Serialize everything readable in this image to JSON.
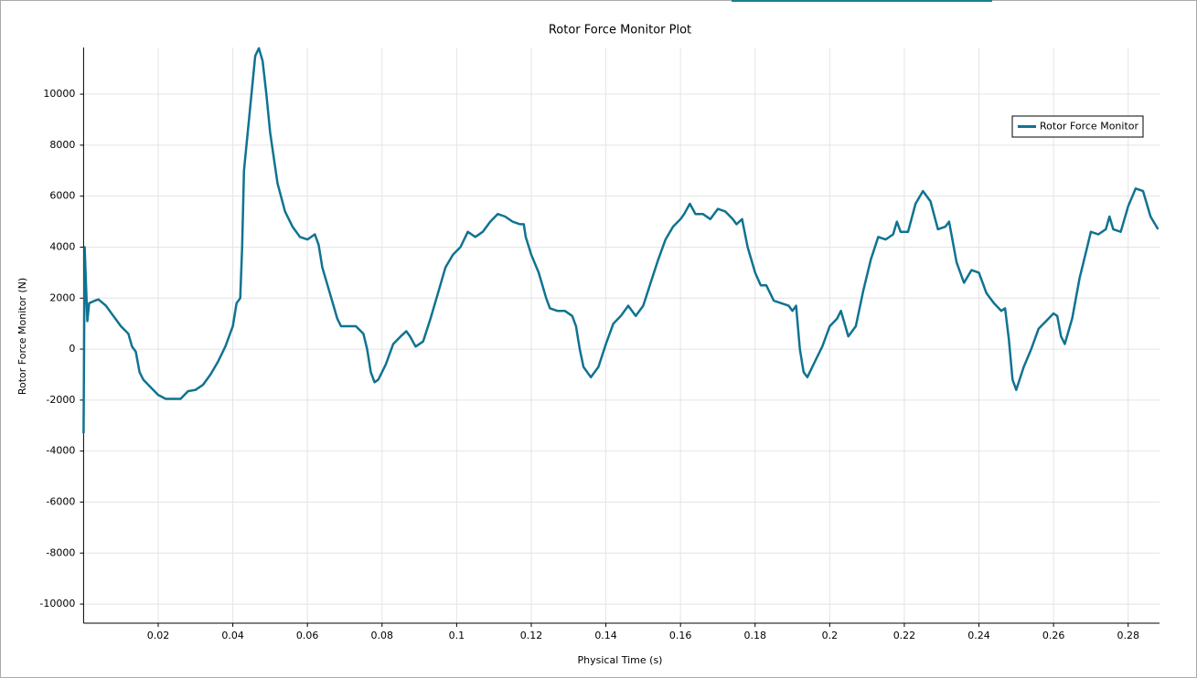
{
  "chart_data": {
    "type": "line",
    "title": "Rotor Force Monitor Plot",
    "x_label": "Physical Time (s)",
    "y_label": "Rotor Force Monitor (N)",
    "xlim": [
      0,
      0.2884
    ],
    "ylim": [
      -10750,
      11830
    ],
    "xticks": [
      0.02,
      0.04,
      0.06,
      0.08,
      0.1,
      0.12,
      0.14,
      0.16,
      0.18,
      0.2,
      0.22,
      0.24,
      0.26,
      0.28
    ],
    "yticks": [
      -10000,
      -8000,
      -6000,
      -4000,
      -2000,
      0,
      2000,
      4000,
      6000,
      8000,
      10000
    ],
    "grid": true,
    "legend": "upper right",
    "x": [
      0,
      0.0003,
      0.001,
      0.0015,
      0.003,
      0.004,
      0.006,
      0.008,
      0.01,
      0.012,
      0.013,
      0.014,
      0.015,
      0.016,
      0.018,
      0.02,
      0.022,
      0.024,
      0.026,
      0.028,
      0.03,
      0.032,
      0.034,
      0.036,
      0.038,
      0.04,
      0.041,
      0.042,
      0.0425,
      0.043,
      0.044,
      0.045,
      0.046,
      0.047,
      0.048,
      0.049,
      0.05,
      0.052,
      0.054,
      0.056,
      0.058,
      0.06,
      0.062,
      0.063,
      0.064,
      0.066,
      0.068,
      0.069,
      0.071,
      0.073,
      0.075,
      0.076,
      0.077,
      0.078,
      0.079,
      0.081,
      0.083,
      0.085,
      0.0865,
      0.0875,
      0.089,
      0.091,
      0.093,
      0.095,
      0.097,
      0.099,
      0.101,
      0.103,
      0.104,
      0.105,
      0.107,
      0.109,
      0.111,
      0.113,
      0.115,
      0.117,
      0.118,
      0.1185,
      0.12,
      0.122,
      0.124,
      0.125,
      0.127,
      0.129,
      0.131,
      0.132,
      0.133,
      0.134,
      0.136,
      0.138,
      0.14,
      0.142,
      0.144,
      0.146,
      0.148,
      0.15,
      0.152,
      0.154,
      0.156,
      0.158,
      0.16,
      0.161,
      0.1625,
      0.164,
      0.166,
      0.168,
      0.17,
      0.172,
      0.174,
      0.175,
      0.1765,
      0.178,
      0.18,
      0.1815,
      0.183,
      0.185,
      0.187,
      0.189,
      0.19,
      0.191,
      0.192,
      0.193,
      0.194,
      0.196,
      0.198,
      0.2,
      0.202,
      0.203,
      0.205,
      0.207,
      0.209,
      0.211,
      0.213,
      0.215,
      0.217,
      0.218,
      0.219,
      0.221,
      0.223,
      0.225,
      0.227,
      0.229,
      0.231,
      0.232,
      0.234,
      0.236,
      0.238,
      0.24,
      0.242,
      0.244,
      0.246,
      0.247,
      0.248,
      0.249,
      0.25,
      0.252,
      0.254,
      0.256,
      0.258,
      0.26,
      0.261,
      0.262,
      0.263,
      0.265,
      0.267,
      0.269,
      0.27,
      0.272,
      0.274,
      0.275,
      0.276,
      0.278,
      0.28,
      0.282,
      0.284,
      0.286,
      0.288
    ],
    "series": [
      {
        "name": "Rotor Force Monitor",
        "color": "#0f7391",
        "values": [
          -3300,
          4000,
          1100,
          1800,
          1900,
          1950,
          1700,
          1300,
          900,
          600,
          100,
          -100,
          -900,
          -1200,
          -1500,
          -1800,
          -1950,
          -1950,
          -1950,
          -1650,
          -1600,
          -1400,
          -1000,
          -500,
          100,
          900,
          1800,
          2000,
          4000,
          7000,
          8500,
          10000,
          11500,
          11800,
          11300,
          10000,
          8500,
          6500,
          5400,
          4800,
          4400,
          4300,
          4500,
          4100,
          3200,
          2200,
          1200,
          900,
          900,
          900,
          600,
          0,
          -900,
          -1300,
          -1200,
          -600,
          200,
          500,
          700,
          500,
          100,
          300,
          1200,
          2200,
          3200,
          3700,
          4000,
          4600,
          4500,
          4400,
          4600,
          5000,
          5300,
          5200,
          5000,
          4900,
          4900,
          4400,
          3700,
          3000,
          2000,
          1600,
          1500,
          1500,
          1300,
          900,
          0,
          -700,
          -1100,
          -700,
          200,
          1000,
          1300,
          1700,
          1300,
          1700,
          2600,
          3500,
          4300,
          4800,
          5100,
          5300,
          5700,
          5300,
          5300,
          5100,
          5500,
          5400,
          5100,
          4900,
          5100,
          4000,
          3000,
          2500,
          2500,
          1900,
          1800,
          1700,
          1500,
          1700,
          0,
          -900,
          -1100,
          -500,
          100,
          900,
          1200,
          1500,
          500,
          900,
          2300,
          3500,
          4400,
          4300,
          4500,
          5000,
          4600,
          4600,
          5700,
          6200,
          5800,
          4700,
          4800,
          5000,
          3400,
          2600,
          3100,
          3000,
          2200,
          1800,
          1500,
          1600,
          400,
          -1200,
          -1600,
          -700,
          0,
          800,
          1100,
          1400,
          1300,
          500,
          200,
          1200,
          2800,
          4000,
          4600,
          4500,
          4700,
          5200,
          4700,
          4600,
          5600,
          6300,
          6200,
          5200,
          4700
        ]
      }
    ]
  }
}
